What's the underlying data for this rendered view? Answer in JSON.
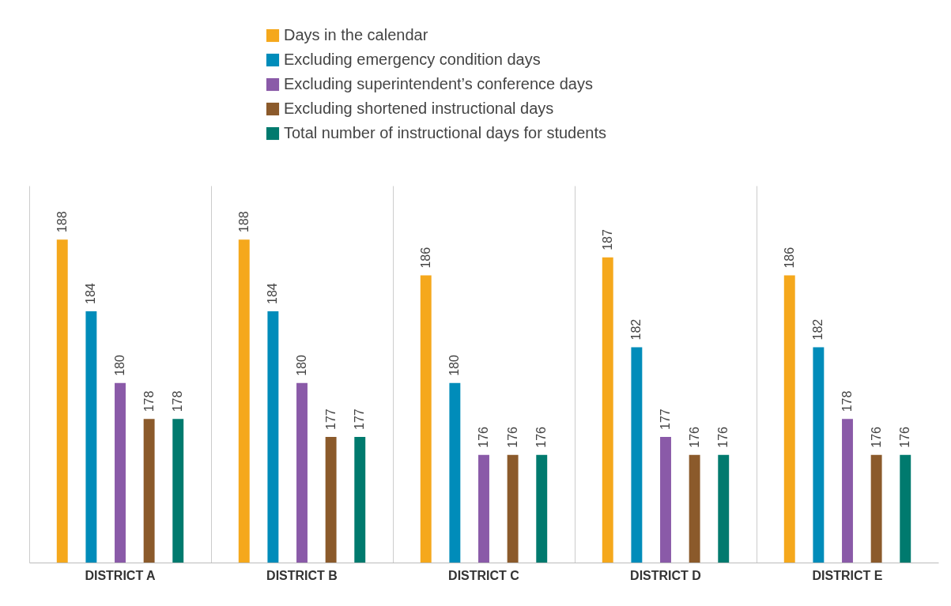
{
  "chart_data": {
    "type": "bar",
    "categories": [
      "DISTRICT A",
      "DISTRICT B",
      "DISTRICT C",
      "DISTRICT D",
      "DISTRICT E"
    ],
    "series": [
      {
        "name": "Days in the calendar",
        "color": "#f5a81c",
        "values": [
          188,
          188,
          186,
          187,
          186
        ]
      },
      {
        "name": "Excluding emergency condition days",
        "color": "#008cba",
        "values": [
          184,
          184,
          180,
          182,
          182
        ]
      },
      {
        "name": "Excluding superintendent’s conference days",
        "color": "#8a5aa8",
        "values": [
          180,
          180,
          176,
          177,
          178
        ]
      },
      {
        "name": "Excluding shortened instructional days",
        "color": "#8b5a2b",
        "values": [
          178,
          177,
          176,
          176,
          176
        ]
      },
      {
        "name": "Total number of instructional days for students",
        "color": "#007a6e",
        "values": [
          178,
          177,
          176,
          176,
          176
        ]
      }
    ],
    "ylim": [
      170,
      191
    ],
    "data_labels": true,
    "legend": "top",
    "grid": "x",
    "tick_labels": "x"
  }
}
